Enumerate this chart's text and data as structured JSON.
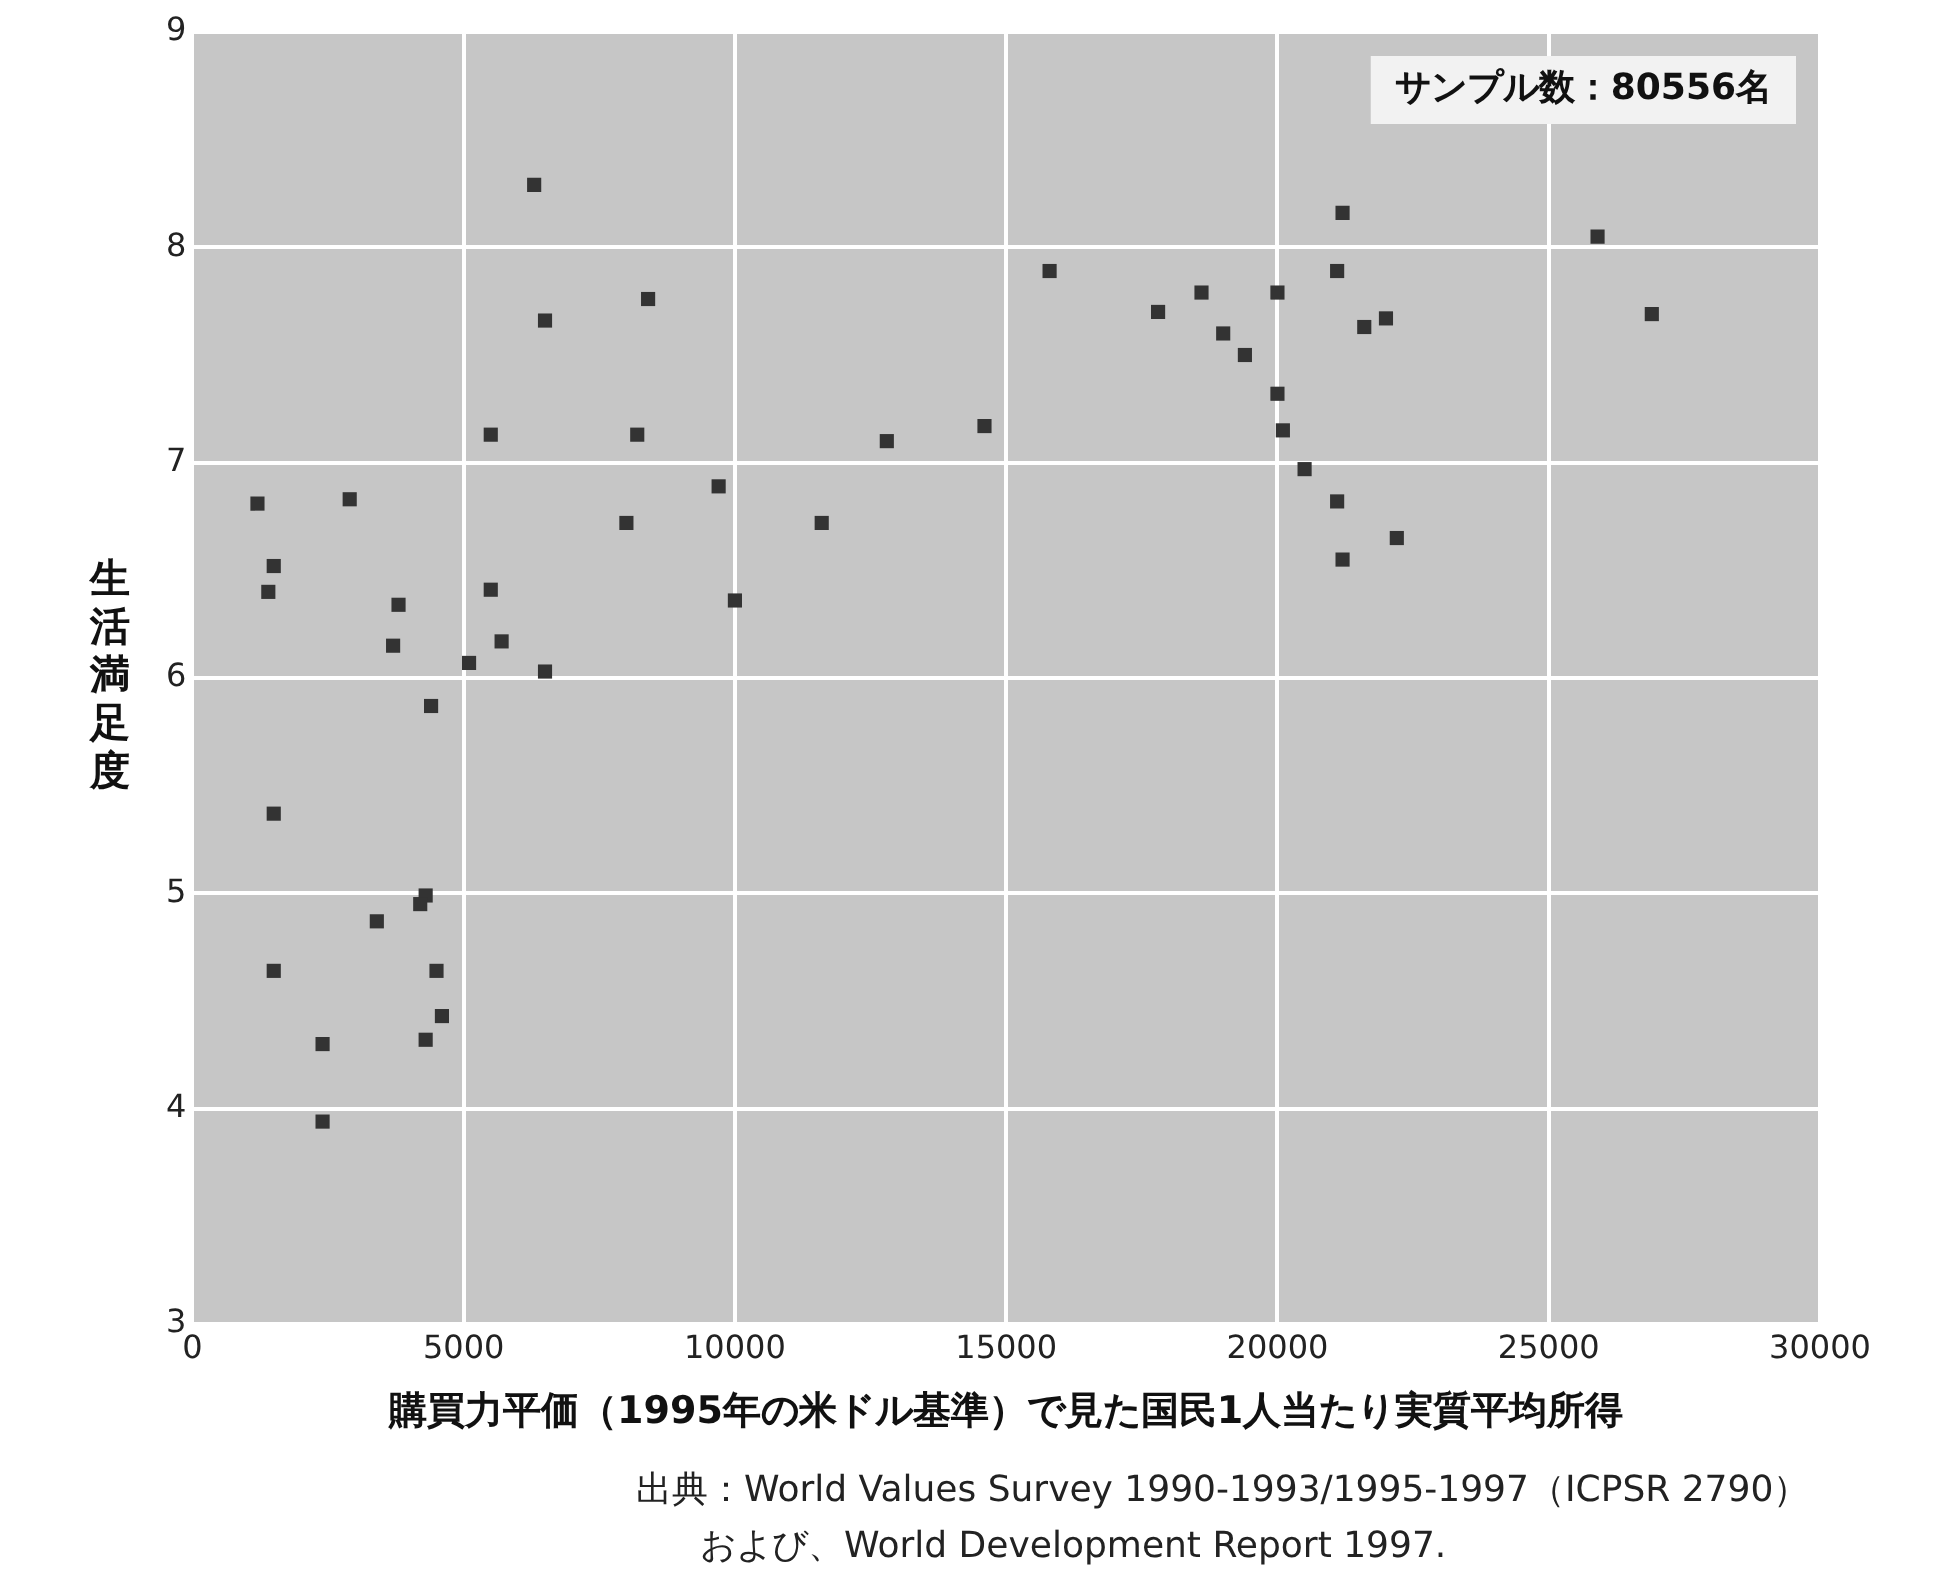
{
  "chart_data": {
    "type": "scatter",
    "xlabel": "購買力平価（1995年の米ドル基準）で見た国民1人当たり実質平均所得",
    "ylabel": "生活満足度",
    "annotations": [
      "サンプル数：80556名",
      "出典：World Values Survey 1990-1993/1995-1997（ICPSR 2790）",
      "および、World Development Report 1997."
    ],
    "series": [
      {
        "color": "#333333",
        "x": [
          6300,
          8400,
          6500,
          5500,
          8200,
          1200,
          2900,
          9700,
          8000,
          1500,
          1400,
          3800,
          5500,
          10000,
          3700,
          5700,
          5100,
          6500,
          4400,
          1500,
          4300,
          4200,
          3400,
          1500,
          4500,
          4600,
          2400,
          4300,
          2400,
          21200,
          25900,
          15800,
          21100,
          18600,
          20000,
          17800,
          22000,
          21600,
          26900,
          19000,
          19400,
          20000,
          20100,
          14600,
          12800,
          20500,
          21100,
          22200,
          21200,
          11600
        ],
        "values": [
          8.29,
          7.76,
          7.66,
          7.13,
          7.13,
          6.81,
          6.83,
          6.89,
          6.72,
          6.52,
          6.4,
          6.34,
          6.41,
          6.36,
          6.15,
          6.17,
          6.07,
          6.03,
          5.87,
          5.37,
          4.99,
          4.95,
          4.87,
          4.64,
          4.64,
          4.43,
          4.3,
          4.32,
          3.94,
          8.16,
          8.05,
          7.89,
          7.89,
          7.79,
          7.79,
          7.7,
          7.67,
          7.63,
          7.69,
          7.6,
          7.5,
          7.32,
          7.15,
          7.17,
          7.1,
          6.97,
          6.82,
          6.65,
          6.55,
          6.72
        ]
      }
    ],
    "xlim": [
      0,
      30000
    ],
    "xticks": [
      0,
      5000,
      10000,
      15000,
      20000,
      25000,
      30000
    ],
    "ylim": [
      3,
      9
    ],
    "yticks": [
      3,
      4,
      5,
      6,
      7,
      8,
      9
    ],
    "grid": true,
    "marker": "square",
    "legend": false
  }
}
